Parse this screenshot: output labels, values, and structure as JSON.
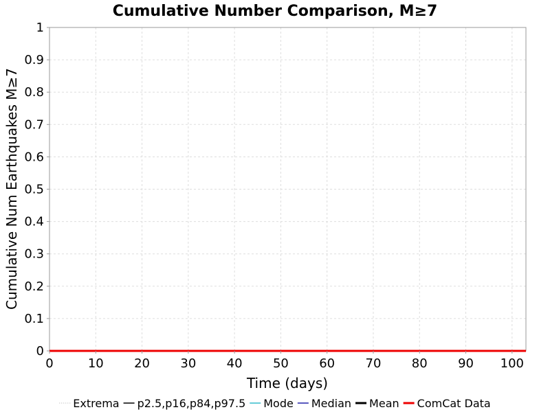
{
  "chart_data": {
    "type": "line",
    "title": "Cumulative Number Comparison, M≥7",
    "xlabel": "Time (days)",
    "ylabel": "Cumulative Num Earthquakes M≥7",
    "xlim": [
      0,
      103
    ],
    "ylim": [
      0,
      1
    ],
    "x_ticks": [
      "0",
      "10",
      "20",
      "30",
      "40",
      "50",
      "60",
      "70",
      "80",
      "90",
      "100"
    ],
    "y_ticks": [
      "0",
      "0.1",
      "0.2",
      "0.3",
      "0.4",
      "0.5",
      "0.6",
      "0.7",
      "0.8",
      "0.9",
      "1"
    ],
    "grid": true,
    "legend_position": "bottom",
    "series": [
      {
        "name": "Extrema",
        "color": "#aaaaaa",
        "style": "dotted",
        "points": []
      },
      {
        "name": "p2.5,p16,p84,p97.5",
        "color": "#000000",
        "style": "solid",
        "points": []
      },
      {
        "name": "Mode",
        "color": "#33bbcc",
        "style": "solid",
        "points": []
      },
      {
        "name": "Median",
        "color": "#2222aa",
        "style": "solid",
        "points": []
      },
      {
        "name": "Mean",
        "color": "#000000",
        "style": "thick",
        "points": []
      },
      {
        "name": "ComCat Data",
        "color": "#ee0000",
        "style": "thick",
        "points": [
          [
            0,
            0
          ],
          [
            103,
            0
          ]
        ]
      }
    ]
  }
}
